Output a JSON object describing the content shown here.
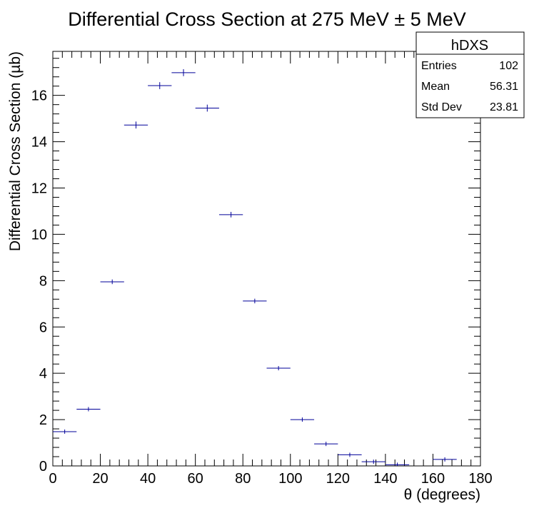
{
  "chart_data": {
    "type": "scatter",
    "title": "Differential Cross Section at 275 MeV ± 5 MeV",
    "xlabel": "θ (degrees)",
    "ylabel": "Differential Cross Section (µb)",
    "xlim": [
      0,
      180
    ],
    "ylim": [
      0,
      17.9
    ],
    "x_ticks": [
      0,
      20,
      40,
      60,
      80,
      100,
      120,
      140,
      160,
      180
    ],
    "y_ticks": [
      0,
      2,
      4,
      6,
      8,
      10,
      12,
      14,
      16
    ],
    "bin_width": 10,
    "grid": false,
    "series": [
      {
        "color": "#000099",
        "x": [
          5,
          15,
          25,
          35,
          45,
          55,
          65,
          75,
          85,
          95,
          105,
          115,
          125,
          135,
          145,
          165
        ],
        "y": [
          1.48,
          2.45,
          7.95,
          14.72,
          16.42,
          16.98,
          15.45,
          10.85,
          7.12,
          4.22,
          2.0,
          0.95,
          0.48,
          0.18,
          0.05,
          0.28
        ],
        "yerr": [
          0.06,
          0.07,
          0.1,
          0.15,
          0.15,
          0.15,
          0.15,
          0.12,
          0.1,
          0.08,
          0.06,
          0.05,
          0.04,
          0.03,
          0.02,
          0.08
        ]
      }
    ],
    "stats_box": {
      "name": "hDXS",
      "rows": [
        {
          "label": "Entries",
          "value": "102"
        },
        {
          "label": "Mean",
          "value": "56.31"
        },
        {
          "label": "Std Dev",
          "value": "23.81"
        }
      ]
    }
  }
}
